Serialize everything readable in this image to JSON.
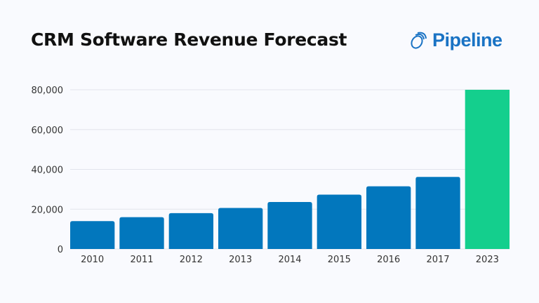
{
  "chart_data": {
    "type": "bar",
    "title": "CRM Software Revenue Forecast",
    "categories": [
      "2010",
      "2011",
      "2012",
      "2013",
      "2014",
      "2015",
      "2016",
      "2017",
      "2023"
    ],
    "values": [
      14000,
      16000,
      18000,
      20600,
      23600,
      27300,
      31500,
      36200,
      80000
    ],
    "highlight_index": 8,
    "ylim": [
      0,
      80000
    ],
    "yticks": [
      "0",
      "20,000",
      "40,000",
      "60,000",
      "80,000"
    ],
    "ytick_values": [
      0,
      20000,
      40000,
      60000,
      80000
    ],
    "grid": true,
    "colors": {
      "bar": "#0277bd",
      "highlight": "#14cf8d",
      "grid": "#e2e4ec"
    }
  },
  "brand": {
    "name": "Pipeline",
    "color": "#1a73c4"
  }
}
